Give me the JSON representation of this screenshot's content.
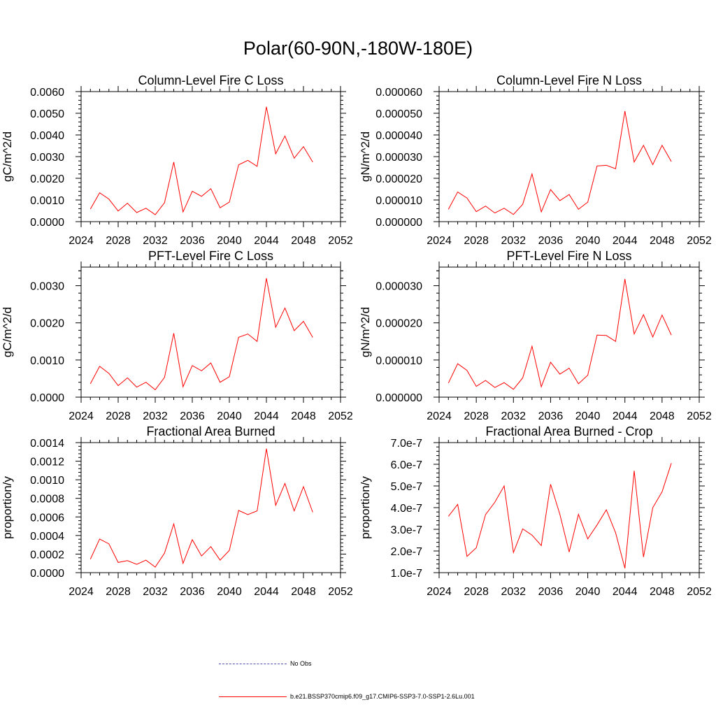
{
  "page_title": "Polar(60-90N,-180W-180E)",
  "chart_data": [
    {
      "type": "line",
      "title": "Column-Level Fire C Loss",
      "xlabel": "",
      "ylabel": "gC/m^2/d",
      "xlim": [
        2024,
        2052
      ],
      "ylim": [
        0,
        0.006
      ],
      "xticks": [
        "2024",
        "2028",
        "2032",
        "2036",
        "2040",
        "2044",
        "2048",
        "2052"
      ],
      "yticks": [
        "0.0000",
        "0.0010",
        "0.0020",
        "0.0030",
        "0.0040",
        "0.0050",
        "0.0060"
      ],
      "x": [
        2025,
        2026,
        2027,
        2028,
        2029,
        2030,
        2031,
        2032,
        2033,
        2034,
        2035,
        2036,
        2037,
        2038,
        2039,
        2040,
        2041,
        2042,
        2043,
        2044,
        2045,
        2046,
        2047,
        2048,
        2049
      ],
      "series": [
        {
          "color": "#ff0000",
          "values": [
            0.00058,
            0.00133,
            0.00104,
            0.00049,
            0.00085,
            0.00042,
            0.00062,
            0.00032,
            0.00087,
            0.00275,
            0.00045,
            0.0014,
            0.00117,
            0.00152,
            0.00064,
            0.0009,
            0.00262,
            0.00283,
            0.00255,
            0.0053,
            0.00313,
            0.00395,
            0.00293,
            0.00346,
            0.00275
          ]
        }
      ]
    },
    {
      "type": "line",
      "title": "Column-Level Fire N Loss",
      "xlabel": "",
      "ylabel": "gN/m^2/d",
      "xlim": [
        2024,
        2052
      ],
      "ylim": [
        0,
        6e-05
      ],
      "xticks": [
        "2024",
        "2028",
        "2032",
        "2036",
        "2040",
        "2044",
        "2048",
        "2052"
      ],
      "yticks": [
        "0.000000",
        "0.000010",
        "0.000020",
        "0.000030",
        "0.000040",
        "0.000050",
        "0.000060"
      ],
      "x": [
        2025,
        2026,
        2027,
        2028,
        2029,
        2030,
        2031,
        2032,
        2033,
        2034,
        2035,
        2036,
        2037,
        2038,
        2039,
        2040,
        2041,
        2042,
        2043,
        2044,
        2045,
        2046,
        2047,
        2048,
        2049
      ],
      "series": [
        {
          "color": "#ff0000",
          "values": [
            5.7e-06,
            1.37e-05,
            1.09e-05,
            4.6e-06,
            7.2e-06,
            4e-06,
            6.2e-06,
            3.3e-06,
            8e-06,
            2.2e-05,
            4.5e-06,
            1.48e-05,
            9.7e-06,
            1.25e-05,
            5.7e-06,
            9e-06,
            2.57e-05,
            2.6e-05,
            2.44e-05,
            5.1e-05,
            2.75e-05,
            3.52e-05,
            2.63e-05,
            3.52e-05,
            2.77e-05
          ]
        }
      ]
    },
    {
      "type": "line",
      "title": "PFT-Level Fire C Loss",
      "xlabel": "",
      "ylabel": "gC/m^2/d",
      "xlim": [
        2024,
        2052
      ],
      "ylim": [
        0,
        0.0035
      ],
      "xticks": [
        "2024",
        "2028",
        "2032",
        "2036",
        "2040",
        "2044",
        "2048",
        "2052"
      ],
      "yticks": [
        "0.0000",
        "0.0010",
        "0.0020",
        "0.0030"
      ],
      "x": [
        2025,
        2026,
        2027,
        2028,
        2029,
        2030,
        2031,
        2032,
        2033,
        2034,
        2035,
        2036,
        2037,
        2038,
        2039,
        2040,
        2041,
        2042,
        2043,
        2044,
        2045,
        2046,
        2047,
        2048,
        2049
      ],
      "series": [
        {
          "color": "#ff0000",
          "values": [
            0.00036,
            0.00083,
            0.00064,
            0.00031,
            0.00052,
            0.00027,
            0.0004,
            0.0002,
            0.00053,
            0.00172,
            0.00028,
            0.00085,
            0.00071,
            0.00092,
            0.0004,
            0.00055,
            0.00161,
            0.0017,
            0.0015,
            0.0032,
            0.00188,
            0.0024,
            0.00179,
            0.00204,
            0.00161
          ]
        }
      ]
    },
    {
      "type": "line",
      "title": "PFT-Level Fire N Loss",
      "xlabel": "",
      "ylabel": "gN/m^2/d",
      "xlim": [
        2024,
        2052
      ],
      "ylim": [
        0,
        3.5e-05
      ],
      "xticks": [
        "2024",
        "2028",
        "2032",
        "2036",
        "2040",
        "2044",
        "2048",
        "2052"
      ],
      "yticks": [
        "0.000000",
        "0.000010",
        "0.000020",
        "0.000030"
      ],
      "x": [
        2025,
        2026,
        2027,
        2028,
        2029,
        2030,
        2031,
        2032,
        2033,
        2034,
        2035,
        2036,
        2037,
        2038,
        2039,
        2040,
        2041,
        2042,
        2043,
        2044,
        2045,
        2046,
        2047,
        2048,
        2049
      ],
      "series": [
        {
          "color": "#ff0000",
          "values": [
            3.8e-06,
            9e-06,
            7.2e-06,
            2.9e-06,
            4.5e-06,
            2.6e-06,
            3.9e-06,
            2.1e-06,
            5.2e-06,
            1.37e-05,
            2.8e-06,
            9.4e-06,
            6.2e-06,
            7.8e-06,
            3.6e-06,
            5.9e-06,
            1.67e-05,
            1.66e-05,
            1.5e-05,
            3.18e-05,
            1.7e-05,
            2.22e-05,
            1.62e-05,
            2.21e-05,
            1.67e-05
          ]
        }
      ]
    },
    {
      "type": "line",
      "title": "Fractional Area Burned",
      "xlabel": "",
      "ylabel": "proportion/y",
      "xlim": [
        2024,
        2052
      ],
      "ylim": [
        0,
        0.0014
      ],
      "xticks": [
        "2024",
        "2028",
        "2032",
        "2036",
        "2040",
        "2044",
        "2048",
        "2052"
      ],
      "yticks": [
        "0.0000",
        "0.0002",
        "0.0004",
        "0.0006",
        "0.0008",
        "0.0010",
        "0.0012",
        "0.0014"
      ],
      "x": [
        2025,
        2026,
        2027,
        2028,
        2029,
        2030,
        2031,
        2032,
        2033,
        2034,
        2035,
        2036,
        2037,
        2038,
        2039,
        2040,
        2041,
        2042,
        2043,
        2044,
        2045,
        2046,
        2047,
        2048,
        2049
      ],
      "series": [
        {
          "color": "#ff0000",
          "values": [
            0.000145,
            0.000362,
            0.00031,
            0.00011,
            0.00013,
            9e-05,
            0.000135,
            6e-05,
            0.00021,
            0.000525,
            0.0001,
            0.000355,
            0.00018,
            0.00028,
            0.000135,
            0.00024,
            0.00067,
            0.000625,
            0.000665,
            0.001335,
            0.000725,
            0.00096,
            0.000665,
            0.000925,
            0.00065
          ]
        }
      ]
    },
    {
      "type": "line",
      "title": "Fractional Area Burned - Crop",
      "xlabel": "",
      "ylabel": "proportion/y",
      "xlim": [
        2024,
        2052
      ],
      "ylim": [
        1e-07,
        7e-07
      ],
      "xticks": [
        "2024",
        "2028",
        "2032",
        "2036",
        "2040",
        "2044",
        "2048",
        "2052"
      ],
      "yticks": [
        "1.0e-7",
        "2.0e-7",
        "3.0e-7",
        "4.0e-7",
        "5.0e-7",
        "6.0e-7",
        "7.0e-7"
      ],
      "x": [
        2025,
        2026,
        2027,
        2028,
        2029,
        2030,
        2031,
        2032,
        2033,
        2034,
        2035,
        2036,
        2037,
        2038,
        2039,
        2040,
        2041,
        2042,
        2043,
        2044,
        2045,
        2046,
        2047,
        2048,
        2049
      ],
      "series": [
        {
          "color": "#ff0000",
          "values": [
            3.6e-07,
            4.15e-07,
            1.75e-07,
            2.15e-07,
            3.68e-07,
            4.25e-07,
            5e-07,
            1.93e-07,
            3.02e-07,
            2.73e-07,
            2.25e-07,
            5.08e-07,
            3.69e-07,
            1.95e-07,
            3.69e-07,
            2.56e-07,
            3.2e-07,
            3.9e-07,
            2.84e-07,
            1.2e-07,
            5.7e-07,
            1.72e-07,
            4e-07,
            4.73e-07,
            6.05e-07
          ]
        }
      ]
    }
  ],
  "legend": {
    "items": [
      {
        "label": "No Obs",
        "color": "#5050b4",
        "style": "dashed"
      },
      {
        "label": "b.e21.BSSP370cmip6.f09_g17.CMIP6-SSP3-7.0-SSP1-2.6Lu.001",
        "color": "#ff0000",
        "style": "solid"
      }
    ]
  }
}
